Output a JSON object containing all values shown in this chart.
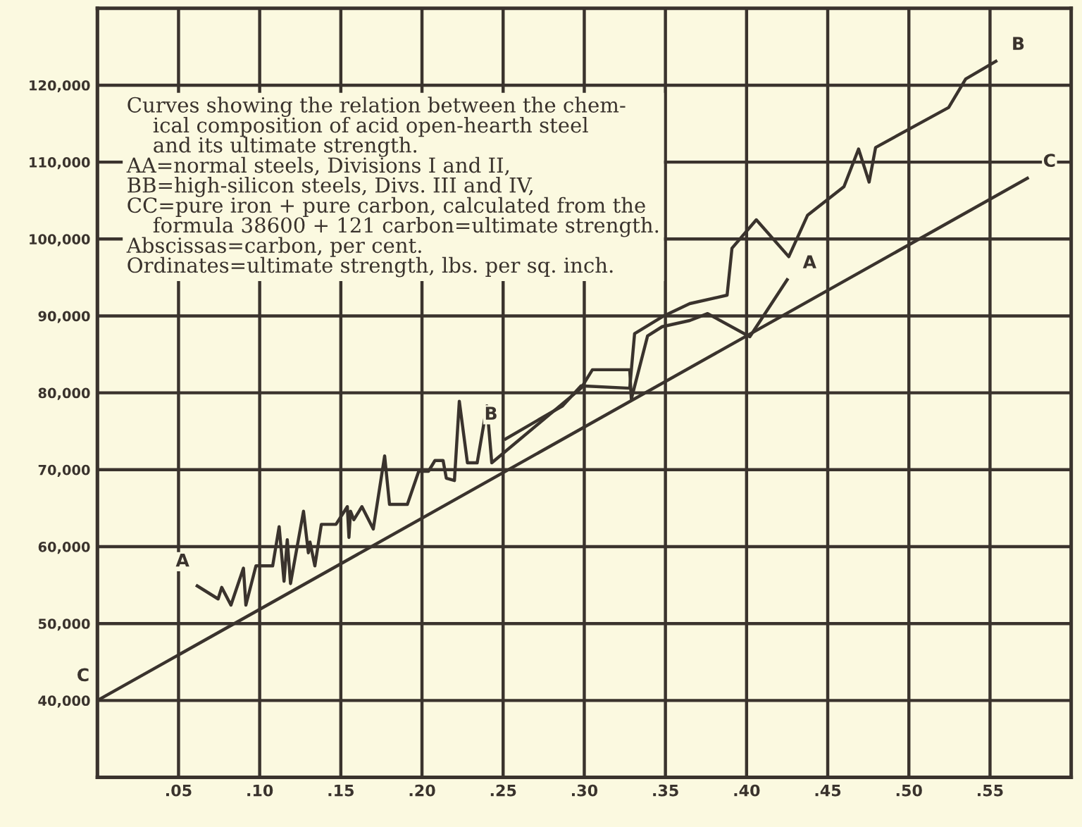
{
  "chart_data": {
    "type": "line",
    "annotations": [
      "Curves showing the relation between the chem-\n    ical composition of acid open-hearth steel\n    and its ultimate strength.\nAA=normal steels, Divisions I and II,\nBB=high-silicon steels, Divs. III and IV,\nCC=pure iron + pure carbon, calculated from the\n    formula 38600 + 121 carbon=ultimate strength.\nAbscissas=carbon, per cent.\nOrdinates=ultimate strength, lbs. per sq. inch."
    ],
    "series": [
      {
        "name": "A",
        "color": "#3a332d",
        "x": [
          0.0615,
          0.0744,
          0.0766,
          0.0823,
          0.09,
          0.0915,
          0.0977,
          0.108,
          0.112,
          0.115,
          0.117,
          0.119,
          0.127,
          0.13,
          0.131,
          0.134,
          0.138,
          0.147,
          0.154,
          0.155,
          0.156,
          0.158,
          0.163,
          0.17,
          0.177,
          0.18,
          0.191,
          0.198,
          0.204,
          0.208,
          0.213,
          0.215,
          0.22,
          0.223,
          0.228,
          0.234,
          0.24,
          0.243,
          0.298,
          0.305,
          0.328,
          0.329,
          0.339,
          0.348,
          0.365,
          0.376,
          0.402,
          0.425
        ],
        "values": [
          54900,
          53200,
          54700,
          52400,
          57200,
          52400,
          57500,
          57500,
          62600,
          55500,
          60900,
          55200,
          64600,
          59200,
          60600,
          57500,
          62900,
          62900,
          65200,
          61200,
          64600,
          63500,
          65200,
          62300,
          71800,
          65500,
          65500,
          69800,
          69800,
          71200,
          71200,
          68900,
          68600,
          78900,
          70900,
          70900,
          78300,
          70900,
          80600,
          83000,
          83000,
          79200,
          87400,
          88600,
          89400,
          90300,
          87300,
          94700
        ]
      },
      {
        "name": "B",
        "color": "#3a332d",
        "x": [
          0.2515,
          0.2866,
          0.298,
          0.328,
          0.331,
          0.349,
          0.365,
          0.388,
          0.391,
          0.406,
          0.426,
          0.4376,
          0.46,
          0.469,
          0.4755,
          0.4795,
          0.5245,
          0.535,
          0.5536
        ],
        "values": [
          74000,
          78300,
          80900,
          80600,
          87700,
          90000,
          91600,
          92700,
          98800,
          102500,
          97700,
          103100,
          106800,
          111700,
          107400,
          111900,
          117100,
          120800,
          123100
        ]
      },
      {
        "name": "C",
        "color": "#3a332d",
        "x": [
          0,
          0.573
        ],
        "values": [
          40000,
          107900
        ]
      }
    ],
    "xlim": [
      0,
      0.6
    ],
    "ylim": [
      30000,
      130000
    ],
    "xticks": [
      {
        "value": 0,
        "label": null
      },
      {
        "value": 0.05,
        "label": ".05"
      },
      {
        "value": 0.1,
        "label": ".10"
      },
      {
        "value": 0.15,
        "label": ".15"
      },
      {
        "value": 0.2,
        "label": ".20"
      },
      {
        "value": 0.25,
        "label": ".25"
      },
      {
        "value": 0.3,
        "label": ".30"
      },
      {
        "value": 0.35,
        "label": ".35"
      },
      {
        "value": 0.4,
        "label": ".40"
      },
      {
        "value": 0.45,
        "label": ".45"
      },
      {
        "value": 0.5,
        "label": ".50"
      },
      {
        "value": 0.55,
        "label": ".55"
      }
    ],
    "yticks": [
      {
        "value": 40000,
        "label": "40,000"
      },
      {
        "value": 50000,
        "label": "50,000"
      },
      {
        "value": 60000,
        "label": "60,000"
      },
      {
        "value": 70000,
        "label": "70,000"
      },
      {
        "value": 80000,
        "label": "80,000"
      },
      {
        "value": 90000,
        "label": "90,000"
      },
      {
        "value": 100000,
        "label": "100,000"
      },
      {
        "value": 110000,
        "label": "110,000"
      },
      {
        "value": 120000,
        "label": "120,000"
      }
    ],
    "grid": true,
    "marker": "none",
    "line_style": "solid",
    "legend": false
  }
}
